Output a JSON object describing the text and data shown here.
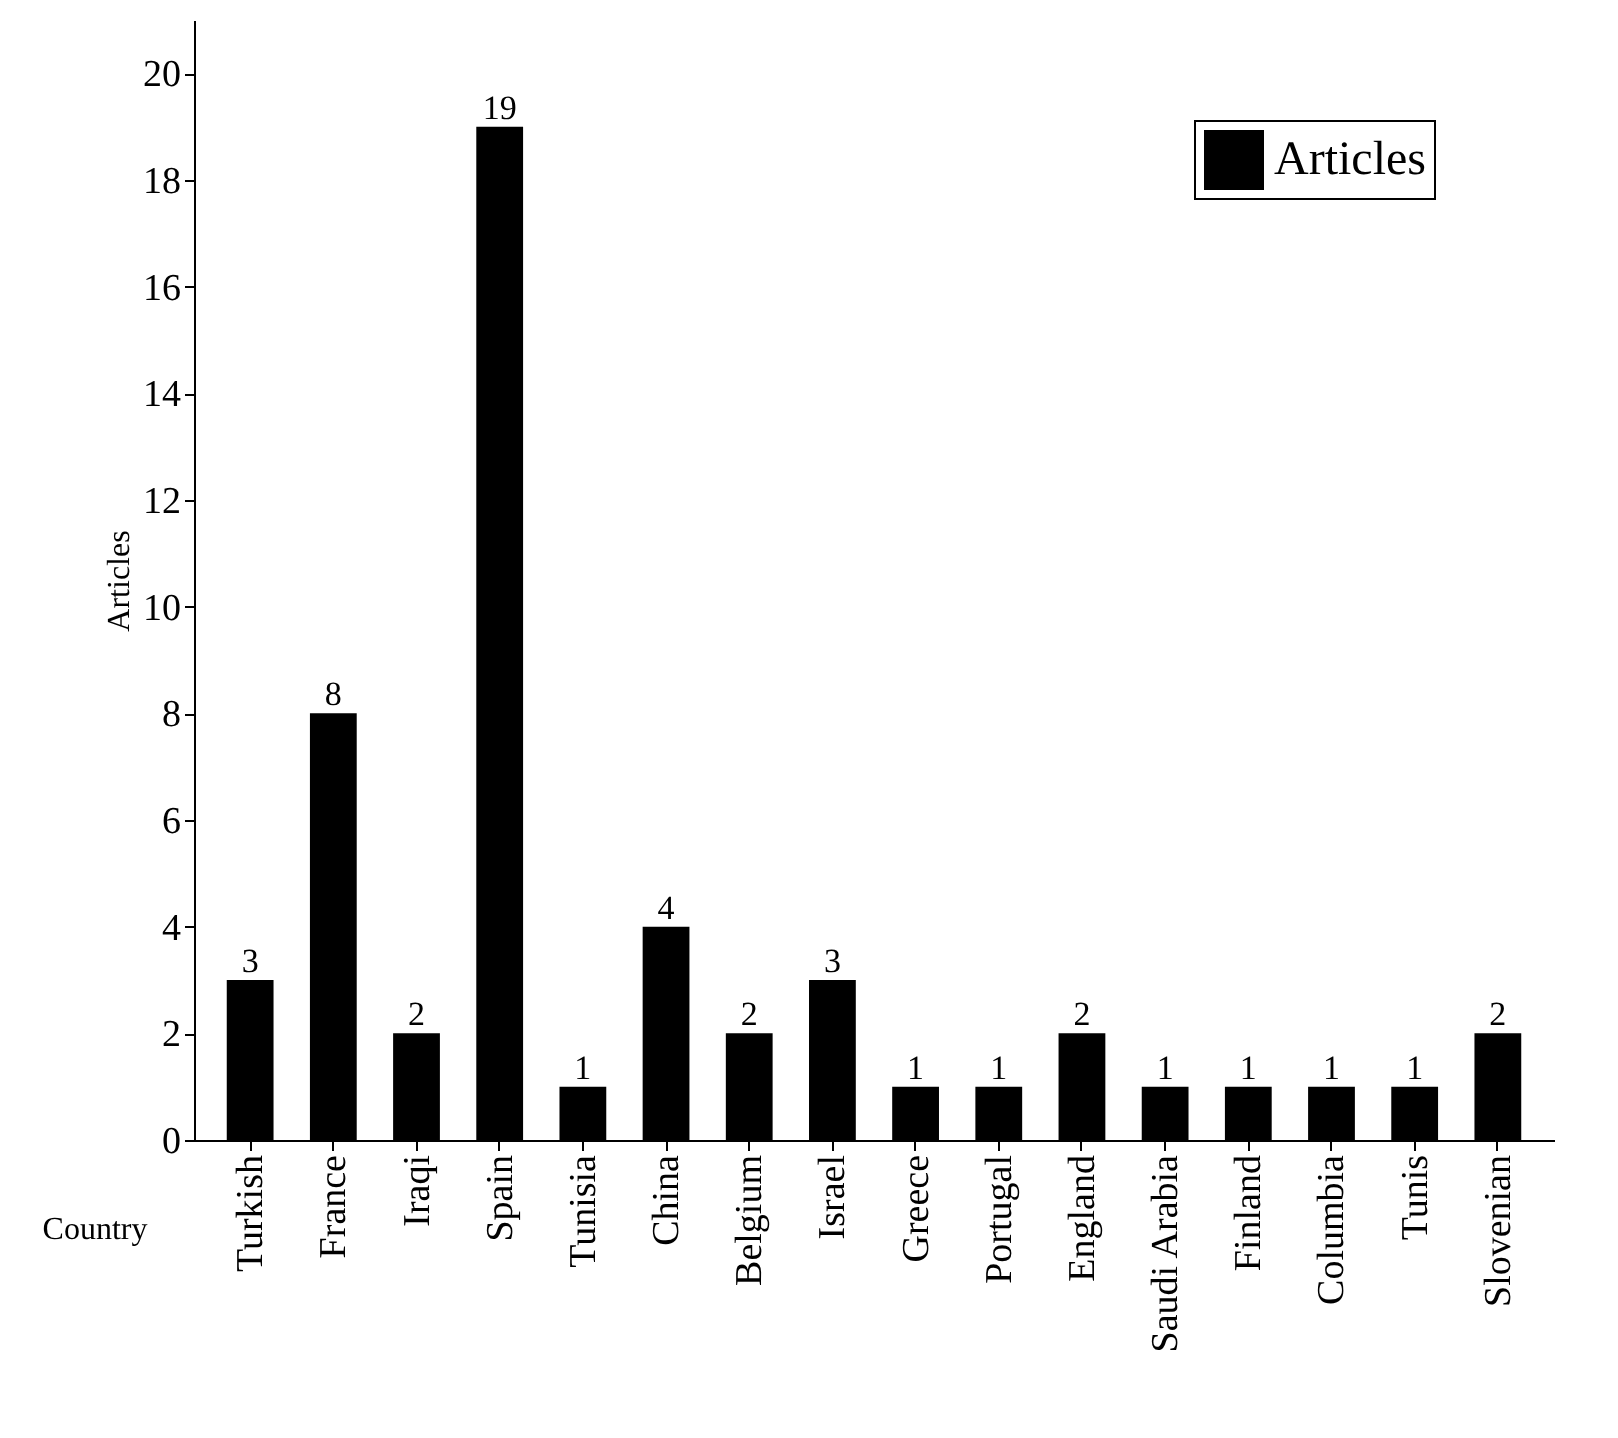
{
  "chart_data": {
    "type": "bar",
    "xlabel": "Country",
    "ylabel": "Articles",
    "categories": [
      "Turkish",
      "France",
      "Iraqi",
      "Spain",
      "Tunisia",
      "China",
      "Belgium",
      "Israel",
      "Greece",
      "Portugal",
      "England",
      "Saudi Arabia",
      "Finland",
      "Columbia",
      "Tunis",
      "Slovenian"
    ],
    "series": [
      {
        "name": "Articles",
        "color": "#000000",
        "values": [
          3,
          8,
          2,
          19,
          1,
          4,
          2,
          3,
          1,
          1,
          2,
          1,
          1,
          1,
          1,
          2
        ]
      }
    ],
    "ylim": [
      0,
      21
    ],
    "yticks": [
      0,
      2,
      4,
      6,
      8,
      10,
      12,
      14,
      16,
      18,
      20
    ],
    "data_labels": true,
    "legend": "top right",
    "grid": false
  }
}
